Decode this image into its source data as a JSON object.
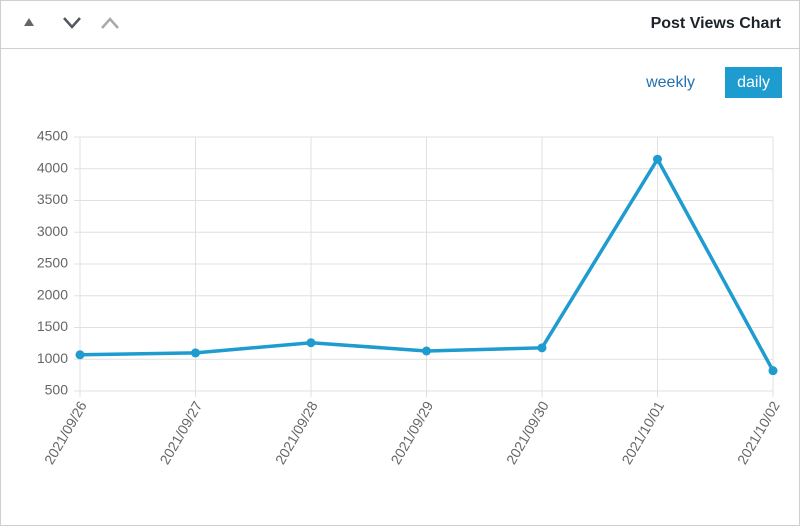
{
  "header": {
    "title": "Post Views Chart"
  },
  "buttons": [
    "weekly",
    "daily"
  ],
  "chart_data": {
    "type": "line",
    "categories": [
      "2021/09/26",
      "2021/09/27",
      "2021/09/28",
      "2021/09/29",
      "2021/09/30",
      "2021/10/01",
      "2021/10/02"
    ],
    "values": [
      1070,
      1100,
      1260,
      1130,
      1180,
      4150,
      820
    ],
    "color": "#1e9bcf",
    "ylim": [
      500,
      4500
    ],
    "yticks": [
      500,
      1000,
      1500,
      2000,
      2500,
      3000,
      3500,
      4000,
      4500
    ],
    "grid": true
  }
}
